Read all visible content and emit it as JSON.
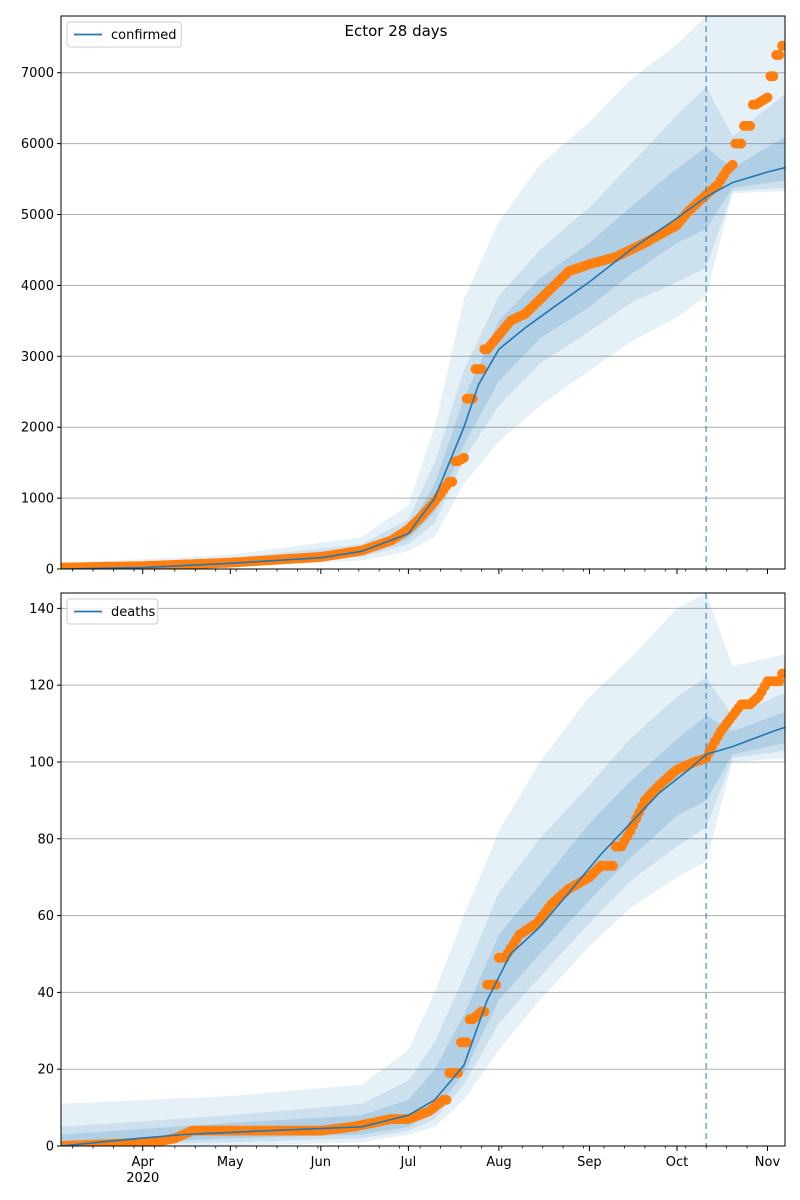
{
  "chart_data": [
    {
      "type": "line",
      "title": "Ector 28 days",
      "xlabel": "",
      "ylabel": "",
      "legend": [
        "confirmed"
      ],
      "legend_position": "top-left",
      "grid": "horizontal",
      "x_range": [
        "2020-03-04",
        "2020-11-07"
      ],
      "ylim": [
        0,
        7800
      ],
      "y_ticks": [
        0,
        1000,
        2000,
        3000,
        4000,
        5000,
        6000,
        7000
      ],
      "x_tick_labels": [],
      "forecast_start": "2020-10-11",
      "colors": {
        "model": "#1f77b4",
        "observed": "#ff7f0e",
        "band": "#1f77b4",
        "forecast_line": "#1f77b4"
      },
      "series": [
        {
          "name": "confirmed",
          "kind": "model_median",
          "x": [
            "2020-03-04",
            "2020-04-01",
            "2020-05-01",
            "2020-06-01",
            "2020-06-15",
            "2020-07-01",
            "2020-07-10",
            "2020-07-20",
            "2020-07-25",
            "2020-08-01",
            "2020-08-10",
            "2020-08-20",
            "2020-09-01",
            "2020-09-15",
            "2020-10-01",
            "2020-10-11",
            "2020-10-20",
            "2020-11-01",
            "2020-11-07"
          ],
          "y": [
            0,
            20,
            80,
            160,
            250,
            500,
            1000,
            2000,
            2600,
            3100,
            3400,
            3700,
            4050,
            4500,
            4950,
            5250,
            5450,
            5600,
            5660
          ]
        },
        {
          "kind": "observed",
          "x": [
            "2020-03-04",
            "2020-04-01",
            "2020-05-01",
            "2020-06-01",
            "2020-06-15",
            "2020-06-25",
            "2020-07-01",
            "2020-07-05",
            "2020-07-10",
            "2020-07-15",
            "2020-07-18",
            "2020-07-20",
            "2020-07-22",
            "2020-07-25",
            "2020-07-28",
            "2020-08-01",
            "2020-08-05",
            "2020-08-10",
            "2020-08-15",
            "2020-08-20",
            "2020-08-25",
            "2020-09-01",
            "2020-09-10",
            "2020-09-20",
            "2020-10-01",
            "2020-10-05",
            "2020-10-11",
            "2020-10-15",
            "2020-10-18",
            "2020-10-20",
            "2020-10-22",
            "2020-10-25",
            "2020-10-28",
            "2020-11-01",
            "2020-11-03",
            "2020-11-05",
            "2020-11-06"
          ],
          "y": [
            20,
            40,
            90,
            170,
            260,
            400,
            560,
            720,
            950,
            1230,
            1520,
            1570,
            2400,
            2820,
            3100,
            3300,
            3500,
            3600,
            3800,
            4000,
            4200,
            4300,
            4400,
            4600,
            4850,
            5050,
            5280,
            5420,
            5620,
            5700,
            6000,
            6250,
            6550,
            6650,
            6950,
            7250,
            7380
          ]
        },
        {
          "kind": "band_outer",
          "x": [
            "2020-03-04",
            "2020-05-01",
            "2020-06-15",
            "2020-07-01",
            "2020-07-10",
            "2020-07-20",
            "2020-08-01",
            "2020-08-15",
            "2020-09-01",
            "2020-09-15",
            "2020-10-01",
            "2020-10-11",
            "2020-10-20",
            "2020-11-07"
          ],
          "lower": [
            0,
            30,
            120,
            250,
            450,
            1200,
            1800,
            2300,
            2800,
            3200,
            3550,
            3850,
            5300,
            5330
          ],
          "upper": [
            80,
            200,
            450,
            900,
            2000,
            3800,
            4900,
            5700,
            6300,
            6900,
            7400,
            7800,
            7800,
            7800
          ]
        },
        {
          "kind": "band_mid",
          "x": [
            "2020-03-04",
            "2020-05-01",
            "2020-06-15",
            "2020-07-01",
            "2020-07-10",
            "2020-07-20",
            "2020-08-01",
            "2020-08-15",
            "2020-09-01",
            "2020-09-15",
            "2020-10-01",
            "2020-10-11",
            "2020-10-20",
            "2020-11-07"
          ],
          "lower": [
            0,
            50,
            170,
            350,
            650,
            1550,
            2300,
            2900,
            3350,
            3750,
            4050,
            4250,
            5330,
            5380
          ],
          "upper": [
            50,
            150,
            350,
            700,
            1500,
            2800,
            3850,
            4500,
            5100,
            5700,
            6400,
            6800,
            6100,
            6700
          ]
        },
        {
          "kind": "band_inner",
          "x": [
            "2020-03-04",
            "2020-05-01",
            "2020-06-15",
            "2020-07-01",
            "2020-07-10",
            "2020-07-20",
            "2020-08-01",
            "2020-08-15",
            "2020-09-01",
            "2020-09-15",
            "2020-10-01",
            "2020-10-11",
            "2020-10-20",
            "2020-11-07"
          ],
          "lower": [
            0,
            60,
            200,
            420,
            800,
            1750,
            2650,
            3250,
            3700,
            4150,
            4600,
            4800,
            5380,
            5480
          ],
          "upper": [
            35,
            120,
            300,
            580,
            1200,
            2400,
            3500,
            4100,
            4600,
            5100,
            5650,
            5950,
            5650,
            6100
          ]
        }
      ]
    },
    {
      "type": "line",
      "title": "",
      "xlabel": "",
      "ylabel": "",
      "legend": [
        "deaths"
      ],
      "legend_position": "top-left",
      "grid": "horizontal",
      "x_range": [
        "2020-03-04",
        "2020-11-07"
      ],
      "ylim": [
        0,
        144
      ],
      "y_ticks": [
        0,
        20,
        40,
        60,
        80,
        100,
        120,
        140
      ],
      "x_tick_labels": [
        "Apr",
        "May",
        "Jun",
        "Jul",
        "Aug",
        "Sep",
        "Oct",
        "Nov"
      ],
      "x_tick_dates": [
        "2020-04-01",
        "2020-05-01",
        "2020-06-01",
        "2020-07-01",
        "2020-08-01",
        "2020-09-01",
        "2020-10-01",
        "2020-11-01"
      ],
      "x_year_label": "2020",
      "forecast_start": "2020-10-11",
      "colors": {
        "model": "#1f77b4",
        "observed": "#ff7f0e",
        "band": "#1f77b4",
        "forecast_line": "#1f77b4"
      },
      "series": [
        {
          "name": "deaths",
          "kind": "model_median",
          "x": [
            "2020-03-04",
            "2020-03-31",
            "2020-04-15",
            "2020-05-15",
            "2020-06-15",
            "2020-07-01",
            "2020-07-10",
            "2020-07-20",
            "2020-07-28",
            "2020-08-05",
            "2020-08-15",
            "2020-08-25",
            "2020-09-05",
            "2020-09-15",
            "2020-09-25",
            "2020-10-05",
            "2020-10-11",
            "2020-10-20",
            "2020-10-27",
            "2020-11-03",
            "2020-11-07"
          ],
          "y": [
            0,
            2,
            3,
            4,
            5,
            8,
            12,
            21,
            38,
            50,
            57,
            66,
            76,
            84,
            92,
            98,
            102,
            104,
            106,
            108,
            109
          ]
        },
        {
          "kind": "observed",
          "x": [
            "2020-03-04",
            "2020-04-05",
            "2020-04-12",
            "2020-04-18",
            "2020-06-01",
            "2020-06-12",
            "2020-06-25",
            "2020-07-01",
            "2020-07-08",
            "2020-07-13",
            "2020-07-17",
            "2020-07-20",
            "2020-07-23",
            "2020-07-26",
            "2020-07-30",
            "2020-08-03",
            "2020-08-08",
            "2020-08-14",
            "2020-08-19",
            "2020-08-25",
            "2020-09-01",
            "2020-09-05",
            "2020-09-08",
            "2020-09-12",
            "2020-09-15",
            "2020-09-20",
            "2020-09-25",
            "2020-10-01",
            "2020-10-07",
            "2020-10-11",
            "2020-10-13",
            "2020-10-16",
            "2020-10-20",
            "2020-10-23",
            "2020-10-26",
            "2020-10-29",
            "2020-11-01",
            "2020-11-05",
            "2020-11-06"
          ],
          "y": [
            0,
            1,
            2,
            4,
            4,
            5,
            7,
            7,
            9,
            12,
            19,
            27,
            33,
            35,
            42,
            49,
            55,
            58,
            63,
            67,
            70,
            73,
            73,
            78,
            82,
            90,
            94,
            98,
            100,
            101,
            104,
            108,
            112,
            115,
            115,
            117,
            121,
            121,
            123
          ]
        },
        {
          "kind": "band_outer",
          "x": [
            "2020-03-04",
            "2020-05-01",
            "2020-06-15",
            "2020-07-01",
            "2020-07-10",
            "2020-07-20",
            "2020-08-01",
            "2020-08-15",
            "2020-09-01",
            "2020-09-15",
            "2020-10-01",
            "2020-10-11",
            "2020-10-20",
            "2020-11-07"
          ],
          "lower": [
            0,
            0,
            1,
            3,
            5,
            12,
            25,
            38,
            52,
            62,
            70,
            74,
            100,
            101
          ],
          "upper": [
            11,
            13,
            16,
            25,
            40,
            60,
            82,
            100,
            117,
            127,
            140,
            144,
            125,
            128
          ]
        },
        {
          "kind": "band_mid",
          "x": [
            "2020-03-04",
            "2020-05-01",
            "2020-06-15",
            "2020-07-01",
            "2020-07-10",
            "2020-07-20",
            "2020-08-01",
            "2020-08-15",
            "2020-09-01",
            "2020-09-15",
            "2020-10-01",
            "2020-10-11",
            "2020-10-20",
            "2020-11-07"
          ],
          "lower": [
            0,
            1,
            2,
            4,
            7,
            16,
            32,
            44,
            58,
            69,
            78,
            83,
            101,
            103
          ],
          "upper": [
            5,
            8,
            11,
            17,
            27,
            44,
            66,
            80,
            94,
            106,
            117,
            122,
            112,
            118
          ]
        },
        {
          "kind": "band_inner",
          "x": [
            "2020-03-04",
            "2020-05-01",
            "2020-06-15",
            "2020-07-01",
            "2020-07-10",
            "2020-07-20",
            "2020-08-01",
            "2020-08-15",
            "2020-09-01",
            "2020-09-15",
            "2020-10-01",
            "2020-10-11",
            "2020-10-20",
            "2020-11-07"
          ],
          "lower": [
            0,
            2,
            3,
            5,
            9,
            19,
            38,
            50,
            64,
            75,
            86,
            90,
            102,
            105
          ],
          "upper": [
            3,
            6,
            8,
            12,
            20,
            34,
            55,
            68,
            84,
            95,
            106,
            112,
            108,
            113
          ]
        }
      ]
    }
  ]
}
